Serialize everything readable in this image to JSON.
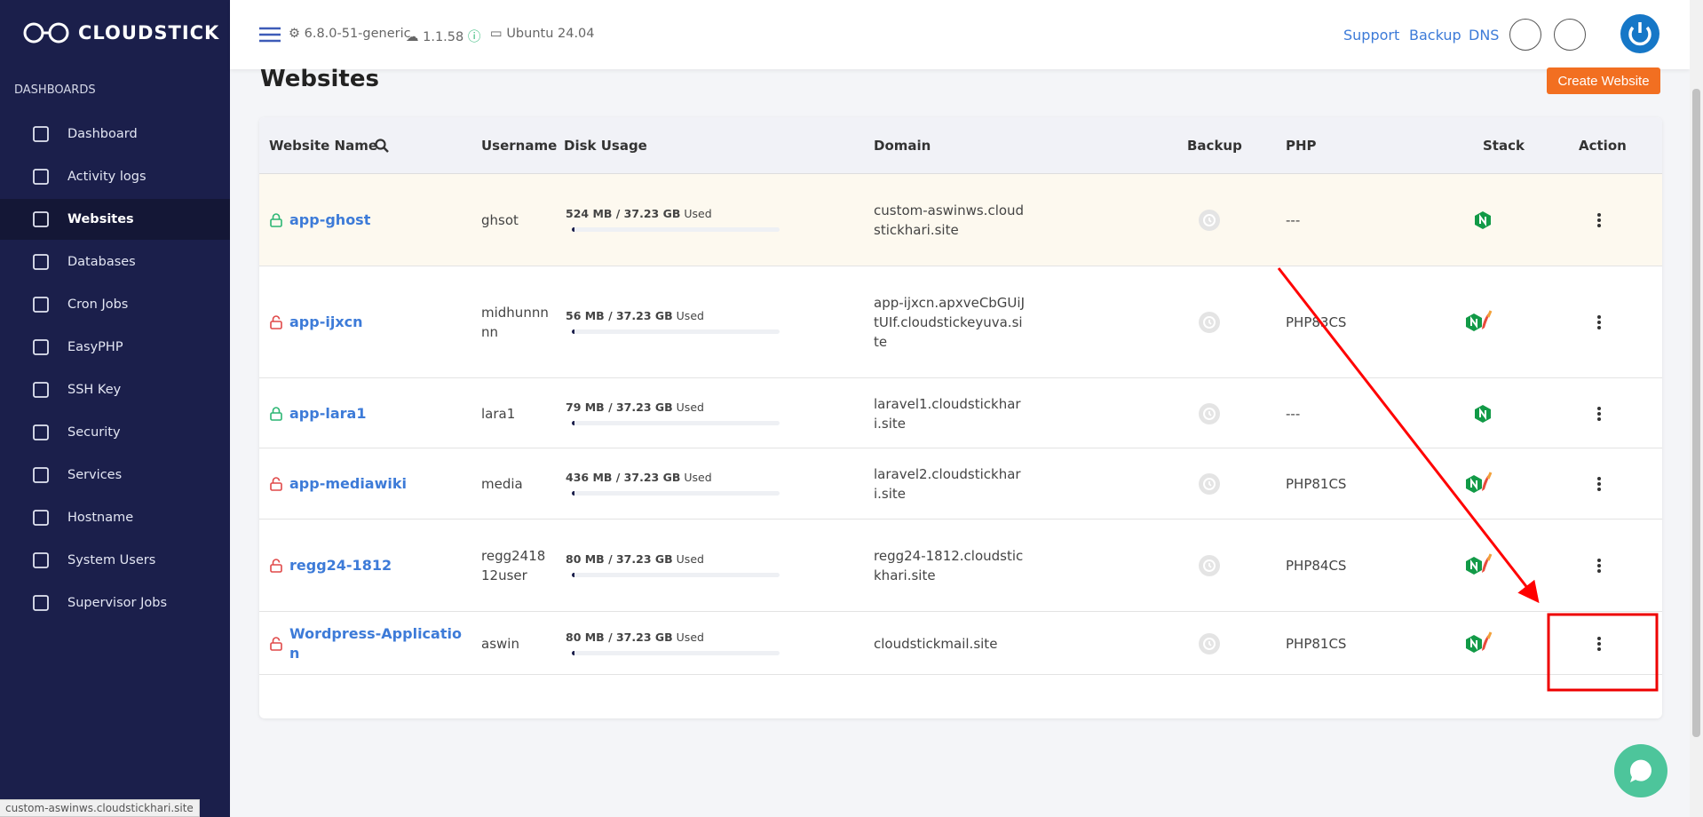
{
  "sidebar": {
    "brand": "CLOUDSTICK",
    "section": "DASHBOARDS",
    "items": [
      "Dashboard",
      "Activity logs",
      "Websites",
      "Databases",
      "Cron Jobs",
      "EasyPHP",
      "SSH Key",
      "Security",
      "Services",
      "Hostname",
      "System Users",
      "Supervisor Jobs"
    ],
    "active": 2
  },
  "topbar": {
    "kernel": "6.8.0-51-generic",
    "agent": "1.1.58",
    "os": "Ubuntu 24.04",
    "links": [
      "Support",
      "Backup",
      "DNS"
    ]
  },
  "page": {
    "title": "Websites",
    "button": "Create Website"
  },
  "table": {
    "headers": [
      "Website Name",
      "Username",
      "Disk Usage",
      "Domain",
      "Backup",
      "PHP",
      "Stack",
      "Action"
    ],
    "rows": [
      {
        "name": "app-ghost",
        "ssl": true,
        "username": "ghsot",
        "disk": "524 MB / 37.23 GB",
        "used": "Used",
        "domain": "custom-aswinws.cloudstickhari.site",
        "php": "---",
        "stack": [
          "nginx"
        ]
      },
      {
        "name": "app-ijxcn",
        "ssl": false,
        "username": "midhunnnnn",
        "disk": "56 MB / 37.23 GB",
        "used": "Used",
        "domain": "app-ijxcn.apxveCbGUiJtUIf.cloudstickeyuva.site",
        "php": "PHP83CS",
        "stack": [
          "nginx",
          "apache"
        ]
      },
      {
        "name": "app-lara1",
        "ssl": true,
        "username": "lara1",
        "disk": "79 MB / 37.23 GB",
        "used": "Used",
        "domain": "laravel1.cloudstickhari.site",
        "php": "---",
        "stack": [
          "nginx"
        ]
      },
      {
        "name": "app-mediawiki",
        "ssl": false,
        "username": "media",
        "disk": "436 MB / 37.23 GB",
        "used": "Used",
        "domain": "laravel2.cloudstickhari.site",
        "php": "PHP81CS",
        "stack": [
          "nginx",
          "apache"
        ]
      },
      {
        "name": "regg24-1812",
        "ssl": false,
        "username": "regg241812user",
        "disk": "80 MB / 37.23 GB",
        "used": "Used",
        "domain": "regg24-1812.cloudstickhari.site",
        "php": "PHP84CS",
        "stack": [
          "nginx",
          "apache"
        ]
      },
      {
        "name": "Wordpress-Application",
        "ssl": false,
        "username": "aswin",
        "disk": "80 MB / 37.23 GB",
        "used": "Used",
        "domain": "cloudstickmail.site",
        "php": "PHP81CS",
        "stack": [
          "nginx",
          "apache"
        ]
      }
    ]
  },
  "status": "custom-aswinws.cloudstickhari.site"
}
